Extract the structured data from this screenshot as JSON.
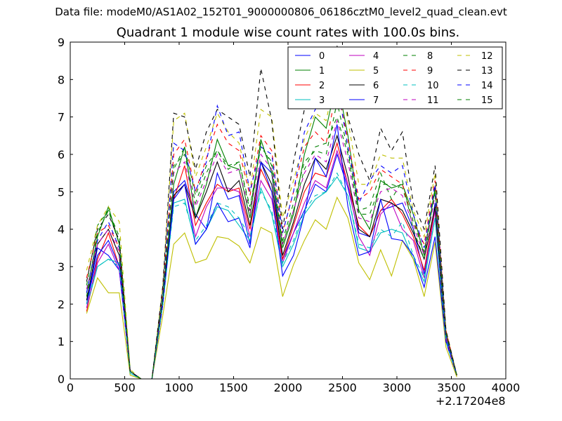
{
  "header": {
    "suptitle": "Data file: modeM0/AS1A02_152T01_9000000806_06186cztM0_level2_quad_clean.evt"
  },
  "chart_data": {
    "type": "line",
    "title": "Quadrant 1 module wise count rates with 100.0s bins.",
    "xlabel": "",
    "ylabel": "",
    "x_offset_label": "+2.17204e8",
    "xlim": [
      0,
      4000
    ],
    "ylim": [
      0,
      9
    ],
    "xticks": [
      0,
      500,
      1000,
      1500,
      2000,
      2500,
      3000,
      3500,
      4000
    ],
    "yticks": [
      0,
      1,
      2,
      3,
      4,
      5,
      6,
      7,
      8,
      9
    ],
    "grid": false,
    "legend_position": "top-right",
    "legend_columns": 4,
    "x": [
      150,
      250,
      350,
      450,
      550,
      650,
      750,
      850,
      950,
      1050,
      1150,
      1250,
      1350,
      1450,
      1550,
      1650,
      1750,
      1850,
      1950,
      2050,
      2150,
      2250,
      2350,
      2450,
      2550,
      2650,
      2750,
      2850,
      2950,
      3050,
      3150,
      3250,
      3350,
      3450,
      3550
    ],
    "series": [
      {
        "name": "0",
        "color": "#0000ff",
        "dash": "solid",
        "values": [
          2.0,
          3.5,
          3.3,
          2.9,
          0.2,
          0.0,
          0.0,
          2.0,
          5.0,
          5.3,
          4.4,
          4.0,
          5.5,
          4.8,
          4.9,
          3.6,
          5.8,
          5.5,
          3.2,
          3.9,
          4.5,
          5.2,
          5.0,
          6.0,
          5.1,
          3.9,
          3.8,
          4.5,
          4.6,
          4.7,
          4.0,
          2.8,
          4.7,
          1.1,
          0.1
        ]
      },
      {
        "name": "1",
        "color": "#008000",
        "dash": "solid",
        "values": [
          2.3,
          3.8,
          4.6,
          3.6,
          0.2,
          0.0,
          0.0,
          2.2,
          5.2,
          6.2,
          4.3,
          5.2,
          6.4,
          5.7,
          5.6,
          4.3,
          6.4,
          5.5,
          3.5,
          4.4,
          6.0,
          7.0,
          6.7,
          8.0,
          6.5,
          4.5,
          4.0,
          5.3,
          5.1,
          5.2,
          4.4,
          3.3,
          5.1,
          1.2,
          0.1
        ]
      },
      {
        "name": "2",
        "color": "#ff0000",
        "dash": "solid",
        "values": [
          1.8,
          3.2,
          3.9,
          3.0,
          0.2,
          0.0,
          0.0,
          2.1,
          4.8,
          5.7,
          4.1,
          4.7,
          5.2,
          5.0,
          5.1,
          4.0,
          5.6,
          5.0,
          3.2,
          4.1,
          5.0,
          5.5,
          5.4,
          6.3,
          5.2,
          4.1,
          3.8,
          4.5,
          4.8,
          4.4,
          3.8,
          2.9,
          4.6,
          1.0,
          0.1
        ]
      },
      {
        "name": "3",
        "color": "#00bfbf",
        "dash": "solid",
        "values": [
          1.9,
          3.0,
          3.2,
          3.1,
          0.15,
          0.0,
          0.0,
          2.0,
          4.7,
          4.8,
          3.6,
          4.0,
          4.6,
          4.5,
          4.1,
          3.7,
          5.1,
          4.4,
          3.0,
          3.6,
          4.4,
          4.8,
          5.0,
          5.4,
          4.9,
          3.5,
          3.4,
          3.9,
          4.0,
          3.9,
          3.2,
          2.6,
          4.3,
          1.0,
          0.1
        ]
      },
      {
        "name": "4",
        "color": "#bf00bf",
        "dash": "solid",
        "values": [
          1.9,
          3.1,
          3.6,
          2.9,
          0.2,
          0.0,
          0.0,
          2.0,
          4.9,
          5.2,
          3.8,
          4.6,
          5.1,
          5.1,
          5.0,
          3.8,
          5.3,
          4.8,
          3.1,
          3.9,
          4.7,
          5.3,
          5.1,
          6.1,
          5.2,
          3.8,
          3.3,
          4.4,
          4.7,
          4.0,
          3.7,
          2.7,
          4.5,
          1.0,
          0.1
        ]
      },
      {
        "name": "5",
        "color": "#bfbf00",
        "dash": "solid",
        "values": [
          1.75,
          2.7,
          2.3,
          2.3,
          0.1,
          0.0,
          0.0,
          1.7,
          3.6,
          3.9,
          3.1,
          3.2,
          3.8,
          3.75,
          3.55,
          3.1,
          4.05,
          3.9,
          2.2,
          3.05,
          3.7,
          4.25,
          4.0,
          4.85,
          4.3,
          3.1,
          2.65,
          3.45,
          2.75,
          3.7,
          3.2,
          2.2,
          3.65,
          0.85,
          0.05
        ]
      },
      {
        "name": "6",
        "color": "#000000",
        "dash": "solid",
        "values": [
          2.1,
          3.6,
          4.0,
          3.3,
          0.2,
          0.0,
          0.0,
          2.1,
          4.9,
          5.2,
          4.3,
          5.0,
          5.8,
          5.0,
          5.3,
          4.1,
          5.8,
          5.2,
          3.3,
          4.2,
          5.2,
          5.9,
          5.6,
          6.5,
          5.4,
          4.0,
          3.8,
          4.8,
          4.7,
          4.5,
          3.9,
          3.2,
          4.6,
          1.0,
          0.1
        ]
      },
      {
        "name": "7",
        "color": "#0000ff",
        "dash": "solid",
        "values": [
          2.0,
          3.3,
          3.7,
          3.0,
          0.2,
          0.0,
          0.0,
          2.0,
          4.8,
          5.2,
          3.6,
          4.0,
          4.7,
          4.2,
          4.3,
          3.5,
          5.8,
          5.0,
          2.75,
          3.3,
          4.4,
          5.9,
          5.4,
          6.8,
          4.6,
          3.3,
          3.4,
          4.8,
          3.75,
          3.7,
          3.3,
          2.45,
          3.8,
          1.0,
          0.1
        ]
      },
      {
        "name": "8",
        "color": "#008000",
        "dash": "dash",
        "values": [
          2.5,
          4.1,
          4.5,
          3.8,
          0.2,
          0.0,
          0.0,
          2.3,
          5.6,
          6.2,
          4.9,
          5.7,
          6.1,
          5.6,
          5.8,
          4.6,
          6.2,
          5.8,
          3.7,
          4.7,
          5.8,
          6.1,
          6.0,
          7.4,
          6.1,
          4.5,
          4.6,
          5.5,
          4.8,
          5.3,
          4.0,
          3.2,
          5.1,
          1.2,
          0.1
        ]
      },
      {
        "name": "9",
        "color": "#ff0000",
        "dash": "dash",
        "values": [
          2.7,
          3.9,
          4.1,
          3.5,
          0.2,
          0.0,
          0.0,
          2.4,
          6.0,
          6.4,
          5.0,
          5.9,
          6.8,
          6.3,
          6.1,
          4.9,
          6.5,
          6.1,
          3.9,
          5.0,
          6.2,
          6.6,
          6.3,
          7.8,
          6.4,
          4.8,
          5.0,
          5.6,
          5.4,
          5.2,
          4.2,
          3.6,
          5.3,
          1.3,
          0.1
        ]
      },
      {
        "name": "10",
        "color": "#00bfbf",
        "dash": "dash",
        "values": [
          2.0,
          3.0,
          3.2,
          3.0,
          0.15,
          0.0,
          0.0,
          2.0,
          4.6,
          4.7,
          3.7,
          4.1,
          4.7,
          4.6,
          4.3,
          3.8,
          5.0,
          4.5,
          3.1,
          3.7,
          4.5,
          4.9,
          5.0,
          5.5,
          4.9,
          3.6,
          3.5,
          4.0,
          3.8,
          4.2,
          3.3,
          2.7,
          4.3,
          1.0,
          0.1
        ]
      },
      {
        "name": "11",
        "color": "#bf00bf",
        "dash": "dash",
        "values": [
          2.4,
          3.6,
          4.0,
          3.4,
          0.2,
          0.0,
          0.0,
          2.2,
          5.5,
          5.8,
          4.6,
          5.3,
          6.0,
          5.5,
          5.6,
          4.4,
          6.0,
          5.6,
          3.6,
          4.5,
          5.5,
          6.0,
          5.8,
          6.9,
          5.8,
          4.3,
          4.2,
          5.0,
          5.1,
          4.9,
          4.1,
          3.3,
          4.9,
          1.1,
          0.1
        ]
      },
      {
        "name": "12",
        "color": "#bfbf00",
        "dash": "dash",
        "values": [
          2.9,
          4.1,
          4.6,
          4.2,
          0.25,
          0.0,
          0.0,
          2.5,
          6.9,
          7.1,
          5.4,
          6.2,
          7.1,
          6.6,
          6.3,
          5.0,
          7.2,
          7.0,
          4.3,
          5.3,
          6.4,
          7.1,
          6.9,
          8.3,
          6.9,
          5.2,
          5.2,
          6.0,
          5.9,
          5.9,
          4.5,
          3.8,
          5.5,
          1.3,
          0.1
        ]
      },
      {
        "name": "13",
        "color": "#000000",
        "dash": "dash",
        "values": [
          2.6,
          4.0,
          4.4,
          3.7,
          0.2,
          0.0,
          0.0,
          2.5,
          7.1,
          7.0,
          5.6,
          6.6,
          7.2,
          7.0,
          6.8,
          5.4,
          8.3,
          6.9,
          4.0,
          5.8,
          7.2,
          7.8,
          7.6,
          8.9,
          7.0,
          6.0,
          5.3,
          6.7,
          6.1,
          6.6,
          4.7,
          4.0,
          5.7,
          1.3,
          0.1
        ]
      },
      {
        "name": "14",
        "color": "#0000ff",
        "dash": "dash",
        "values": [
          2.3,
          3.7,
          4.2,
          3.5,
          0.2,
          0.0,
          0.0,
          2.3,
          6.3,
          6.1,
          5.0,
          5.8,
          7.3,
          6.5,
          6.6,
          5.0,
          6.2,
          6.0,
          3.9,
          5.0,
          6.6,
          7.2,
          7.6,
          7.9,
          6.2,
          4.7,
          5.3,
          5.7,
          5.5,
          5.7,
          4.4,
          3.5,
          5.2,
          1.2,
          0.1
        ]
      },
      {
        "name": "15",
        "color": "#008000",
        "dash": "dash",
        "values": [
          2.2,
          3.9,
          4.5,
          3.6,
          0.2,
          0.0,
          0.0,
          2.2,
          5.7,
          6.0,
          4.7,
          5.5,
          6.1,
          5.7,
          5.8,
          4.5,
          6.3,
          5.7,
          3.6,
          4.5,
          5.6,
          6.2,
          6.3,
          7.0,
          6.0,
          4.4,
          4.4,
          5.2,
          5.2,
          5.1,
          4.2,
          3.4,
          5.0,
          1.2,
          0.1
        ]
      }
    ]
  }
}
